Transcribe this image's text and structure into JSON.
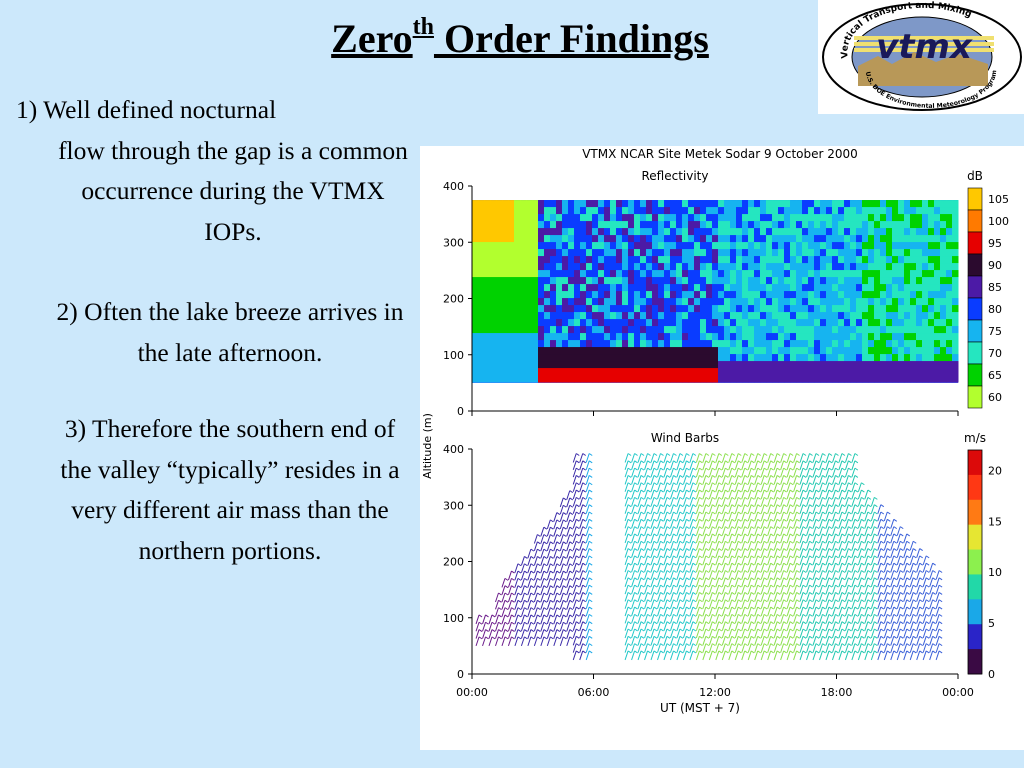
{
  "slide": {
    "title_word": "Zero",
    "title_sup": "th",
    "title_rest": " Order Findings",
    "points": [
      "1) Well defined nocturnal",
      "flow through the gap is a common occurrence during the VTMX IOPs.",
      "2) Often the lake breeze arrives in the late afternoon.",
      "3) Therefore the southern end of the valley “typically” resides in a very different air mass than the northern portions."
    ]
  },
  "logo": {
    "ring_text": "Vertical Transport and Mixing",
    "acronym": "vtmx",
    "program_text": "U.S. DOE Environmental Meteorology Program"
  },
  "figure": {
    "header": "VTMX   NCAR Site   Metek Sodar   9 October 2000",
    "ylabel": "Altitude (m)",
    "xlabel": "UT   (MST + 7)"
  },
  "chart_data": [
    {
      "type": "heatmap",
      "title": "Reflectivity",
      "colorbar_label": "dB",
      "colorbar_levels": [
        60,
        65,
        70,
        75,
        80,
        85,
        90,
        95,
        100,
        105
      ],
      "colorbar_colors": [
        "#b2ff2e",
        "#00d200",
        "#25e6c0",
        "#16b4f0",
        "#0a3cff",
        "#4c1aa6",
        "#2b0a2e",
        "#e60000",
        "#ff7a00",
        "#ffc800"
      ],
      "yticks": [
        0,
        100,
        200,
        300,
        400
      ],
      "ylim": [
        0,
        400
      ],
      "xlim_hours": [
        0,
        24
      ],
      "data_altitude_range_m": [
        50,
        375
      ]
    },
    {
      "type": "scatter",
      "title": "Wind Barbs",
      "colorbar_label": "m/s",
      "colorbar_ticks": [
        0,
        5,
        10,
        15,
        20
      ],
      "colorbar_colors": [
        "#3a0a44",
        "#2a24c8",
        "#1aa8e8",
        "#22d8a8",
        "#8cf04e",
        "#e6e632",
        "#ff7a14",
        "#ff3814",
        "#dc0a0a"
      ],
      "xticks": [
        "00:00",
        "06:00",
        "12:00",
        "18:00",
        "00:00"
      ],
      "yticks": [
        0,
        100,
        200,
        300,
        400
      ],
      "ylim": [
        0,
        400
      ],
      "xlim_hours": [
        0,
        24
      ]
    }
  ]
}
